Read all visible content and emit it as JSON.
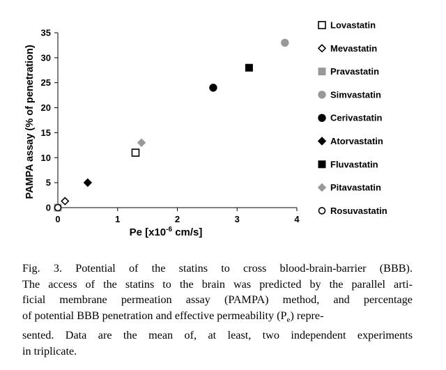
{
  "chart_data": {
    "type": "scatter",
    "xlabel_main": "Pe [x10",
    "xlabel_sup": "-6",
    "xlabel_tail": " cm/s]",
    "ylabel": "PAMPA assay (% of penetration)",
    "xlim": [
      0,
      4
    ],
    "ylim": [
      0,
      35
    ],
    "x_ticks": [
      0,
      1,
      2,
      3,
      4
    ],
    "y_ticks": [
      0,
      5,
      10,
      15,
      20,
      25,
      30,
      35
    ],
    "grid": false,
    "legend_position": "right",
    "series": [
      {
        "name": "Lovastatin",
        "marker": "square-open",
        "color": "#000000",
        "points": [
          {
            "x": 1.3,
            "y": 11
          }
        ]
      },
      {
        "name": "Mevastatin",
        "marker": "diamond-open",
        "color": "#000000",
        "points": [
          {
            "x": 0.12,
            "y": 1.3
          }
        ]
      },
      {
        "name": "Pravastatin",
        "marker": "square-filled",
        "color": "#999999",
        "points": [
          {
            "x": 0.0,
            "y": 0.0
          }
        ]
      },
      {
        "name": "Simvastatin",
        "marker": "circle-filled",
        "color": "#999999",
        "points": [
          {
            "x": 3.8,
            "y": 33
          }
        ]
      },
      {
        "name": "Cerivastatin",
        "marker": "circle-filled",
        "color": "#000000",
        "points": [
          {
            "x": 2.6,
            "y": 24
          }
        ]
      },
      {
        "name": "Atorvastatin",
        "marker": "diamond-filled",
        "color": "#000000",
        "points": [
          {
            "x": 0.5,
            "y": 5
          }
        ]
      },
      {
        "name": "Fluvastatin",
        "marker": "square-filled",
        "color": "#000000",
        "points": [
          {
            "x": 3.2,
            "y": 28
          }
        ]
      },
      {
        "name": "Pitavastatin",
        "marker": "diamond-filled",
        "color": "#999999",
        "points": [
          {
            "x": 1.4,
            "y": 13
          }
        ]
      },
      {
        "name": "Rosuvastatin",
        "marker": "circle-open",
        "color": "#000000",
        "points": [
          {
            "x": 0.0,
            "y": 0.0
          }
        ]
      }
    ]
  },
  "caption": {
    "lines": [
      "Fig. 3. Potential of the statins to cross blood-brain-barrier (BBB).",
      "The access of the statins to the brain was predicted by the parallel arti-",
      "ficial membrane permeation assay (PAMPA) method, and percentage",
      "of potential BBB penetration and effective permeability (P",
      "sented. Data are the mean of, at least, two independent experiments",
      "in triplicate."
    ],
    "line4_sub": "e",
    "line4_tail": ") repre-"
  }
}
